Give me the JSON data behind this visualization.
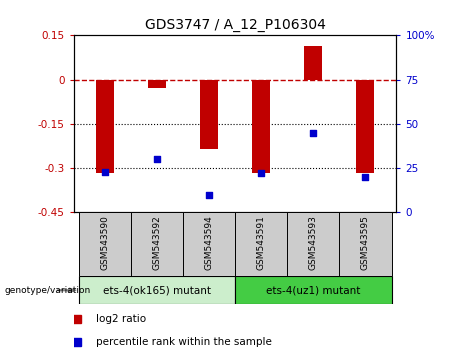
{
  "title": "GDS3747 / A_12_P106304",
  "samples": [
    "GSM543590",
    "GSM543592",
    "GSM543594",
    "GSM543591",
    "GSM543593",
    "GSM543595"
  ],
  "log2_ratio": [
    -0.315,
    -0.028,
    -0.235,
    -0.315,
    0.115,
    -0.315
  ],
  "percentile_rank": [
    23,
    30,
    10,
    22,
    45,
    20
  ],
  "bar_color": "#c00000",
  "dot_color": "#0000cc",
  "ylim_left": [
    -0.45,
    0.15
  ],
  "ylim_right": [
    0,
    100
  ],
  "yticks_left": [
    0.15,
    0.0,
    -0.15,
    -0.3,
    -0.45
  ],
  "yticks_left_labels": [
    "0.15",
    "0",
    "-0.15",
    "-0.3",
    "-0.45"
  ],
  "yticks_right": [
    100,
    75,
    50,
    25,
    0
  ],
  "right_ytick_labels": [
    "100%",
    "75",
    "50",
    "25",
    "0"
  ],
  "group1_label": "ets-4(ok165) mutant",
  "group2_label": "ets-4(uz1) mutant",
  "group1_indices": [
    0,
    1,
    2
  ],
  "group2_indices": [
    3,
    4,
    5
  ],
  "group1_color": "#cceecc",
  "group2_color": "#44cc44",
  "sample_box_color": "#cccccc",
  "legend_log2": "log2 ratio",
  "legend_pct": "percentile rank within the sample",
  "bar_width": 0.35
}
